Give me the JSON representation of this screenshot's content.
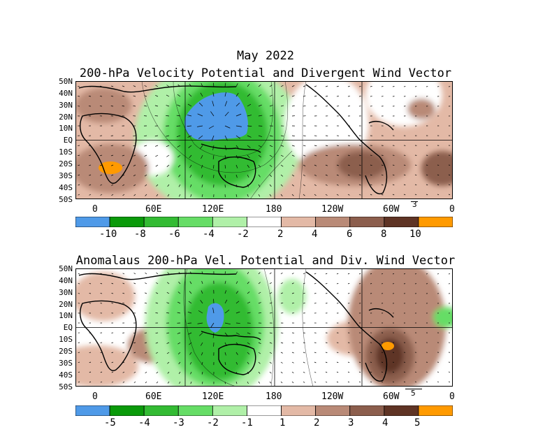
{
  "header": {
    "title": "May 2022"
  },
  "top_panel": {
    "title": "200-hPa Velocity Potential and Divergent Wind Vector",
    "lat_labels": [
      "50N",
      "40N",
      "30N",
      "20N",
      "10N",
      "EQ",
      "10S",
      "20S",
      "30S",
      "40S",
      "50S"
    ],
    "lon_labels": [
      "0",
      "60E",
      "120E",
      "180",
      "120W",
      "60W",
      "0"
    ],
    "vector_ref": "3",
    "colorbar_labels": [
      "-10",
      "-8",
      "-6",
      "-4",
      "-2",
      "2",
      "4",
      "6",
      "8",
      "10"
    ],
    "colorbar_colors": [
      "#4f9ae8",
      "#0a9a0a",
      "#33bb33",
      "#66dd66",
      "#b0f0a8",
      "#ffffff",
      "#e3b9a6",
      "#b98a77",
      "#8c5e4d",
      "#5f3425",
      "#ff9a00"
    ]
  },
  "bottom_panel": {
    "title": "Anomalaus 200-hPa Vel. Potential and Div. Wind Vector",
    "lat_labels": [
      "50N",
      "40N",
      "30N",
      "20N",
      "10N",
      "EQ",
      "10S",
      "20S",
      "30S",
      "40S",
      "50S"
    ],
    "lon_labels": [
      "0",
      "60E",
      "120E",
      "180",
      "120W",
      "60W",
      "0"
    ],
    "vector_ref": "5",
    "colorbar_labels": [
      "-5",
      "-4",
      "-3",
      "-2",
      "-1",
      "1",
      "2",
      "3",
      "4",
      "5"
    ],
    "colorbar_colors": [
      "#4f9ae8",
      "#0a9a0a",
      "#33bb33",
      "#66dd66",
      "#b0f0a8",
      "#ffffff",
      "#e3b9a6",
      "#b98a77",
      "#8c5e4d",
      "#5f3425",
      "#ff9a00"
    ]
  }
}
